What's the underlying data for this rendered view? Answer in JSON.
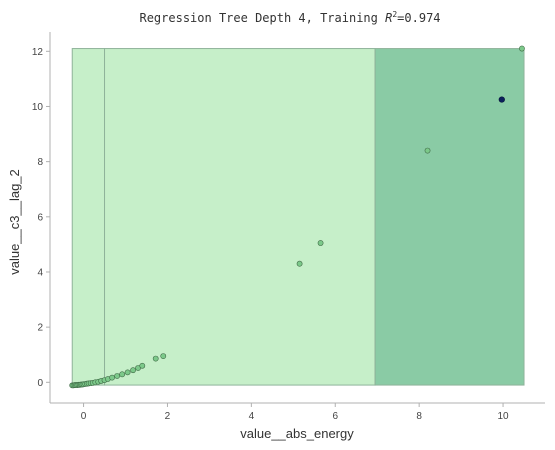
{
  "chart_data": {
    "type": "scatter",
    "title": "Regression Tree Depth 4, Training R²=0.974",
    "title_parts": {
      "main": "Regression Tree Depth 4, Training ",
      "r": "R",
      "sup": "2",
      "value": "=0.974"
    },
    "xlabel": "value__abs_energy",
    "ylabel": "value__c3__lag_2",
    "xlim": [
      -0.8,
      11.0
    ],
    "ylim": [
      -0.75,
      12.7
    ],
    "x_ticks": [
      0,
      2,
      4,
      6,
      8,
      10
    ],
    "y_ticks": [
      0,
      2,
      4,
      6,
      8,
      10,
      12
    ],
    "grid": false,
    "regions": [
      {
        "x0": -0.27,
        "x1": 0.5,
        "y0": -0.1,
        "y1": 12.1,
        "value": "low",
        "color": "#c6efc9"
      },
      {
        "x0": 0.5,
        "x1": 6.95,
        "y0": -0.1,
        "y1": 12.1,
        "value": "low",
        "color": "#c6efc9"
      },
      {
        "x0": 6.95,
        "x1": 10.5,
        "y0": -0.1,
        "y1": 12.1,
        "value": "high",
        "color": "#8acba5"
      }
    ],
    "points": [
      {
        "x": -0.27,
        "y": -0.11
      },
      {
        "x": -0.24,
        "y": -0.11
      },
      {
        "x": -0.21,
        "y": -0.1
      },
      {
        "x": -0.18,
        "y": -0.1
      },
      {
        "x": -0.15,
        "y": -0.1
      },
      {
        "x": -0.12,
        "y": -0.09
      },
      {
        "x": -0.09,
        "y": -0.09
      },
      {
        "x": -0.06,
        "y": -0.08
      },
      {
        "x": -0.03,
        "y": -0.08
      },
      {
        "x": 0.0,
        "y": -0.07
      },
      {
        "x": 0.04,
        "y": -0.06
      },
      {
        "x": 0.08,
        "y": -0.05
      },
      {
        "x": 0.12,
        "y": -0.04
      },
      {
        "x": 0.17,
        "y": -0.03
      },
      {
        "x": 0.22,
        "y": -0.02
      },
      {
        "x": 0.28,
        "y": 0.0
      },
      {
        "x": 0.35,
        "y": 0.02
      },
      {
        "x": 0.42,
        "y": 0.05
      },
      {
        "x": 0.5,
        "y": 0.08
      },
      {
        "x": 0.58,
        "y": 0.12
      },
      {
        "x": 0.68,
        "y": 0.17
      },
      {
        "x": 0.8,
        "y": 0.23
      },
      {
        "x": 0.92,
        "y": 0.29
      },
      {
        "x": 1.05,
        "y": 0.36
      },
      {
        "x": 1.18,
        "y": 0.44
      },
      {
        "x": 1.3,
        "y": 0.52
      },
      {
        "x": 1.4,
        "y": 0.6
      },
      {
        "x": 1.72,
        "y": 0.86
      },
      {
        "x": 1.9,
        "y": 0.95
      },
      {
        "x": 5.15,
        "y": 4.3
      },
      {
        "x": 5.65,
        "y": 5.05
      },
      {
        "x": 8.2,
        "y": 8.4
      },
      {
        "x": 10.45,
        "y": 12.1
      }
    ],
    "highlight_points": [
      {
        "x": 9.97,
        "y": 10.25
      }
    ],
    "colors": {
      "point_fill": "#7cc98a",
      "point_edge": "#3f6b46",
      "highlight_fill": "#0b1f5c",
      "low_region": "#c6efc9",
      "high_region": "#8acba5",
      "region_edge": "#8fb39a"
    }
  }
}
